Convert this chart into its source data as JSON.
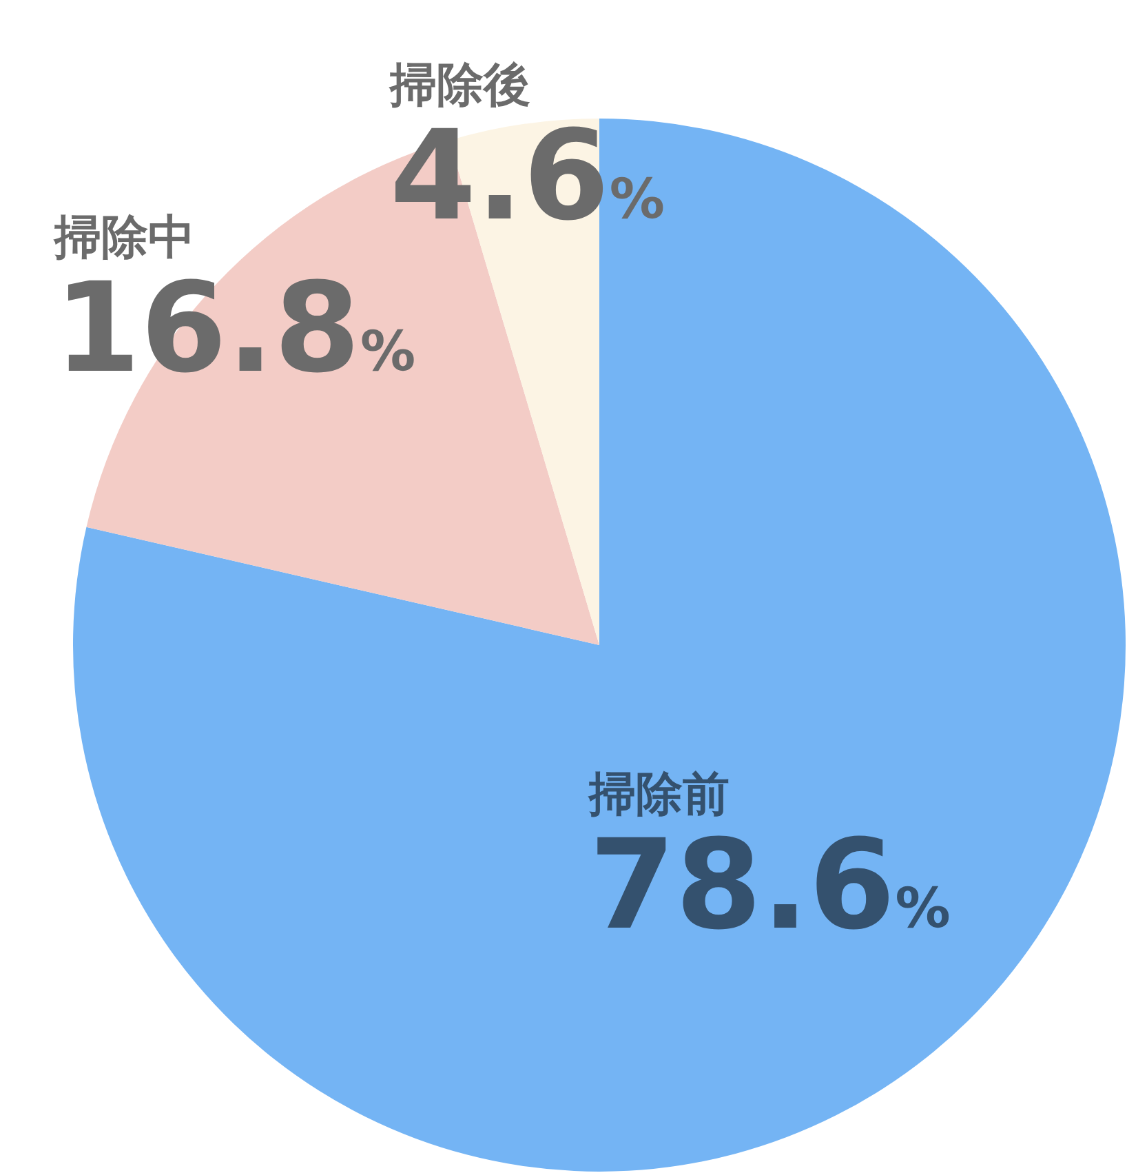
{
  "chart_data": {
    "type": "pie",
    "categories": [
      "掃除前",
      "掃除中",
      "掃除後"
    ],
    "values": [
      78.6,
      16.8,
      4.6
    ],
    "value_labels": [
      "78.6%",
      "16.8%",
      "4.6%"
    ],
    "colors": [
      "#74b4f4",
      "#f3ccc6",
      "#fcf4e4"
    ]
  }
}
